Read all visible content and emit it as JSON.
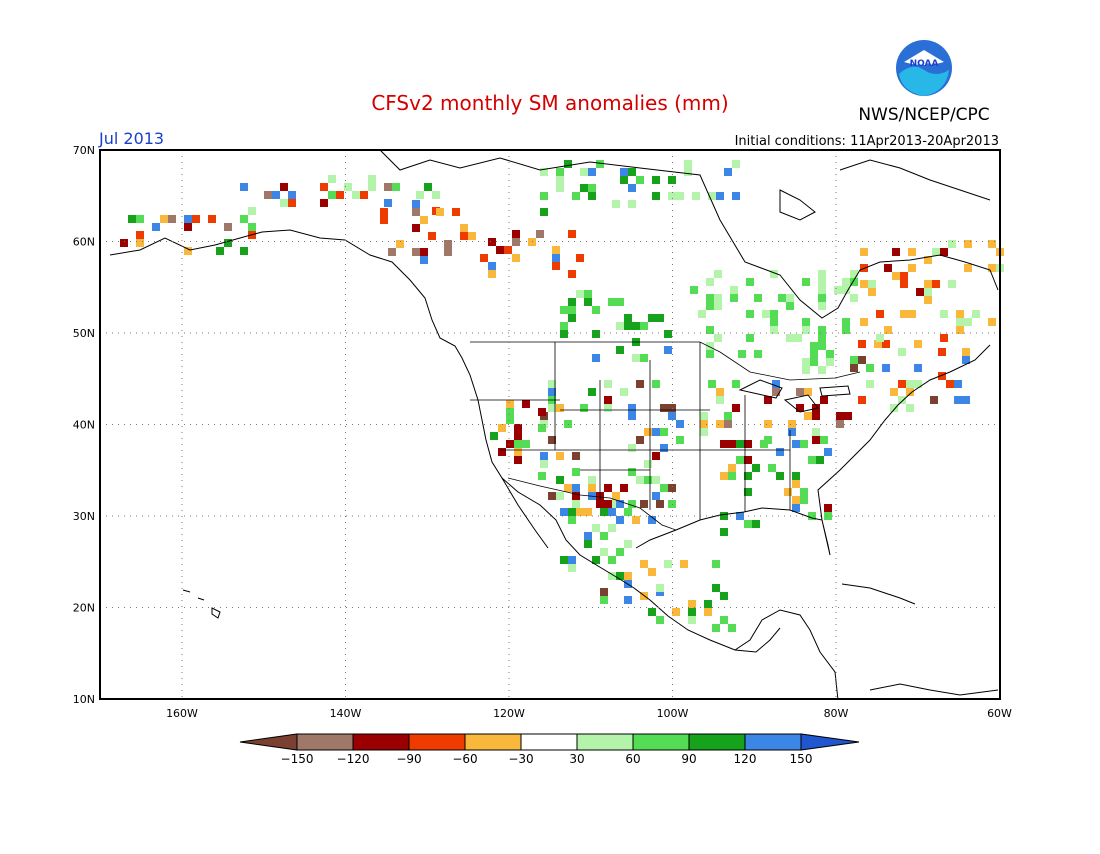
{
  "title": "CFSv2 monthly SM anomalies (mm)",
  "month_label": "Jul 2013",
  "initial_conditions": "Initial conditions: 11Apr2013-20Apr2013",
  "agency": "NWS/NCEP/CPC",
  "logo_text": "NOAA",
  "colors": {
    "title": "#d40000",
    "month": "#1a3fcc",
    "text": "#000000",
    "grid": "#777777"
  },
  "lat_labels": [
    "70N",
    "60N",
    "50N",
    "40N",
    "30N",
    "20N",
    "10N"
  ],
  "lon_labels": [
    "160W",
    "140W",
    "120W",
    "100W",
    "80W",
    "60W"
  ],
  "legend": {
    "colors": [
      "#7a4130",
      "#a0786a",
      "#9b0000",
      "#ee3b00",
      "#f9b73c",
      "#ffffff",
      "#b4f4aa",
      "#55dc55",
      "#16a21a",
      "#3c86e6",
      "#2057d0"
    ],
    "tick_labels": [
      "−150",
      "−120",
      "−90",
      "−60",
      "−30",
      "30",
      "60",
      "90",
      "120",
      "150"
    ]
  }
}
